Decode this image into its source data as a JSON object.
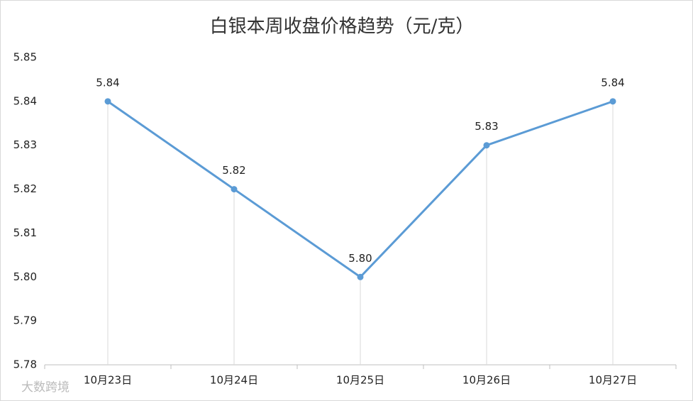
{
  "chart_data": {
    "type": "line",
    "title": "白银本周收盘价格趋势（元/克）",
    "categories": [
      "10月23日",
      "10月24日",
      "10月25日",
      "10月26日",
      "10月27日"
    ],
    "series": [
      {
        "name": "白银",
        "color": "#5b9bd5",
        "values": [
          5.84,
          5.82,
          5.8,
          5.83,
          5.84
        ],
        "value_labels": [
          "5.84",
          "5.82",
          "5.80",
          "5.83",
          "5.84"
        ]
      }
    ],
    "ylim": [
      5.78,
      5.85
    ],
    "yticks": [
      5.78,
      5.79,
      {
        "value": 5.8,
        "label": "5.80"
      },
      5.81,
      5.82,
      5.83,
      5.84,
      5.85
    ],
    "grid": false,
    "drop_lines": true
  },
  "watermark": "大数跨境"
}
